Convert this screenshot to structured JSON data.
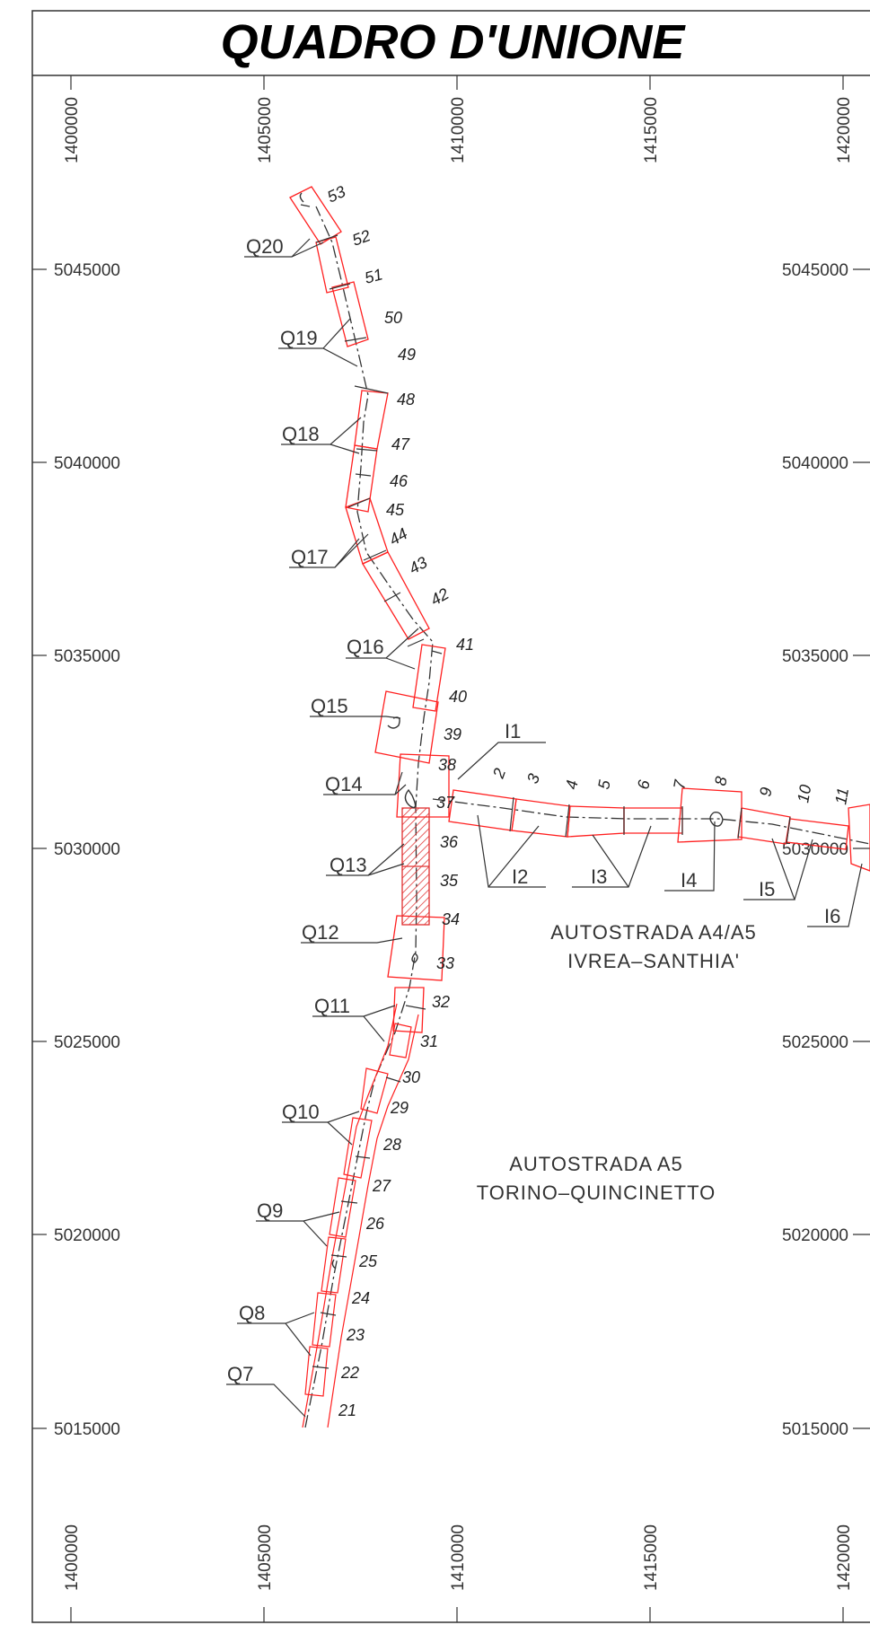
{
  "title": "QUADRO D'UNIONE",
  "x_ticks": [
    "1400000",
    "1405000",
    "1410000",
    "1415000",
    "1420000"
  ],
  "y_ticks": [
    "5045000",
    "5040000",
    "5035000",
    "5030000",
    "5025000",
    "5020000",
    "5015000"
  ],
  "sheets_q": [
    "Q7",
    "Q8",
    "Q9",
    "Q10",
    "Q11",
    "Q12",
    "Q13",
    "Q14",
    "Q15",
    "Q16",
    "Q17",
    "Q18",
    "Q19",
    "Q20"
  ],
  "sheets_i": [
    "I1",
    "I2",
    "I3",
    "I4",
    "I5",
    "I6"
  ],
  "section_numbers": [
    "2",
    "3",
    "4",
    "5",
    "6",
    "7",
    "8",
    "9",
    "10",
    "11",
    "21",
    "22",
    "23",
    "24",
    "25",
    "26",
    "27",
    "28",
    "29",
    "30",
    "31",
    "32",
    "33",
    "34",
    "35",
    "36",
    "37",
    "38",
    "39",
    "40",
    "41",
    "42",
    "43",
    "44",
    "45",
    "46",
    "47",
    "48",
    "49",
    "50",
    "51",
    "52",
    "53"
  ],
  "roads": {
    "a4a5_line1": "AUTOSTRADA A4/A5",
    "a4a5_line2": "IVREA–SANTHIA'",
    "a5_line1": "AUTOSTRADA A5",
    "a5_line2": "TORINO–QUINCINETTO"
  },
  "colors": {
    "sheet_outline": "#ff2020",
    "axis": "#333333",
    "hatch": "#e03030"
  }
}
